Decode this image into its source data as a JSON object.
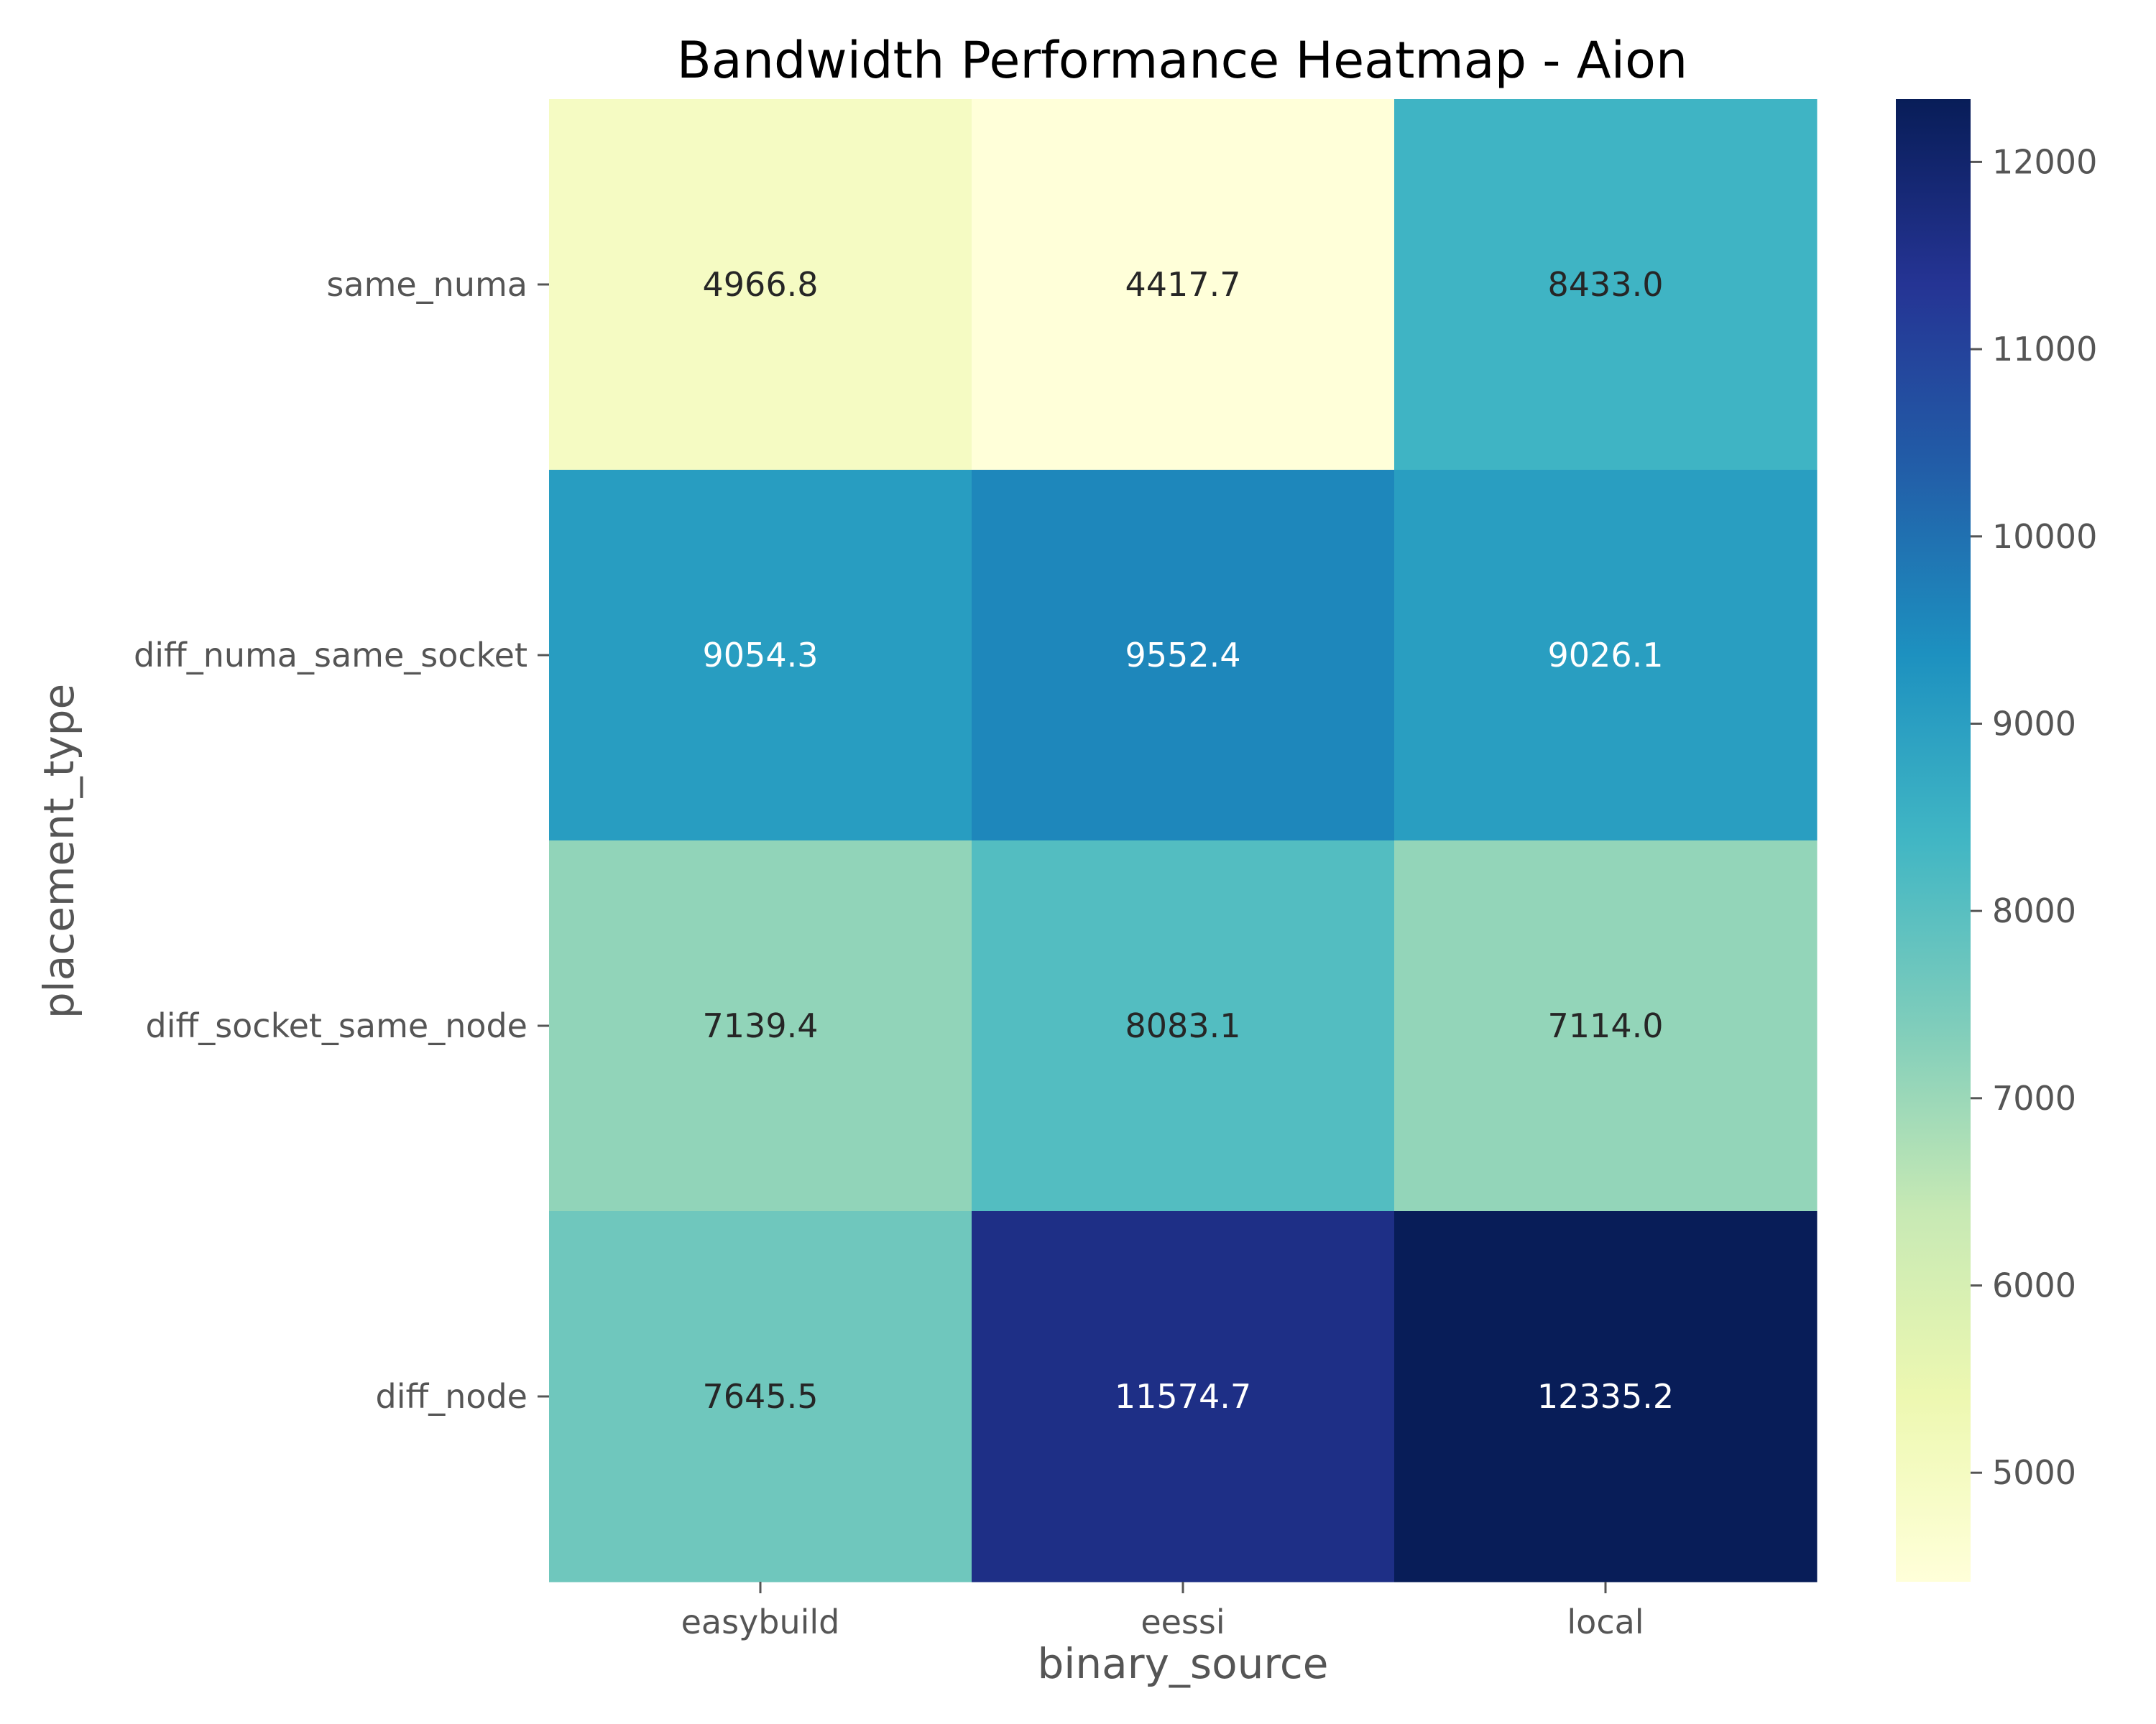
{
  "chart_data": {
    "type": "heatmap",
    "title": "Bandwidth Performance Heatmap - Aion",
    "xlabel": "binary_source",
    "ylabel": "placement_type",
    "x_categories": [
      "easybuild",
      "eessi",
      "local"
    ],
    "y_categories": [
      "same_numa",
      "diff_numa_same_socket",
      "diff_socket_same_node",
      "diff_node"
    ],
    "values": [
      [
        4966.8,
        4417.7,
        8433.0
      ],
      [
        9054.3,
        9552.4,
        9026.1
      ],
      [
        7139.4,
        8083.1,
        7114.0
      ],
      [
        7645.5,
        11574.7,
        12335.2
      ]
    ],
    "value_labels": [
      [
        "4966.8",
        "4417.7",
        "8433.0"
      ],
      [
        "9054.3",
        "9552.4",
        "9026.1"
      ],
      [
        "7139.4",
        "8083.1",
        "7114.0"
      ],
      [
        "7645.5",
        "11574.7",
        "12335.2"
      ]
    ],
    "colorbar": {
      "min": 4417.7,
      "max": 12335.2,
      "ticks": [
        5000,
        6000,
        7000,
        8000,
        9000,
        10000,
        11000,
        12000
      ],
      "tick_labels": [
        "5000",
        "6000",
        "7000",
        "8000",
        "9000",
        "10000",
        "11000",
        "12000"
      ],
      "colormap": "YlGnBu",
      "stops": [
        "#ffffd9",
        "#edf8b1",
        "#c7e9b4",
        "#7fcdbb",
        "#41b6c4",
        "#1d91c0",
        "#225ea8",
        "#253494",
        "#081d58"
      ]
    },
    "grid": false,
    "legend": "colorbar-right"
  }
}
